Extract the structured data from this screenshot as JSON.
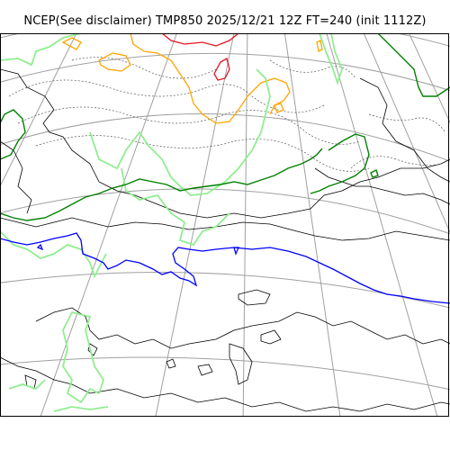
{
  "title": "NCEP(See disclaimer) TMP850 2025/12/21 12Z FT=240 (init 1112Z)",
  "colors": {
    "graticule": "#a0a0a0",
    "coastline": "#000000",
    "isotherm_dashed": "#555555",
    "contour_red": "#e8131f",
    "contour_orange": "#ffa500",
    "contour_lightgreen": "#90ee90",
    "contour_green": "#008000",
    "contour_blue": "#0000ff"
  },
  "layers": [
    "graticule",
    "coastline",
    "isotherm-dashed",
    "isotherm-red",
    "isotherm-orange",
    "isotherm-lightgreen",
    "isotherm-green",
    "isotherm-blue"
  ]
}
